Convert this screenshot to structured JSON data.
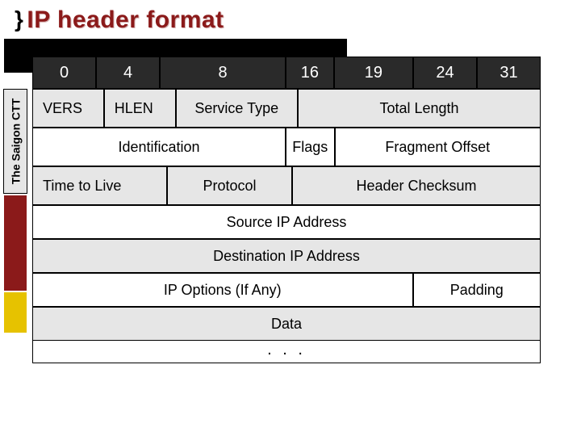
{
  "title": {
    "brace": "}",
    "text": "IP header format",
    "color": "#8b1a1a"
  },
  "sidebar": {
    "label": "The Saigon CTT",
    "bg": "#e6e6e6",
    "red_block": "#8b1a1a",
    "yellow_block": "#e6c200"
  },
  "diagram": {
    "type": "table",
    "bit_header": {
      "background": "#2a2a2a",
      "text_color": "#ffffff",
      "cells": [
        {
          "label": "0",
          "width": 4
        },
        {
          "label": "4",
          "width": 4
        },
        {
          "label": "8",
          "width": 8
        },
        {
          "label": "16",
          "width": 3
        },
        {
          "label": "19",
          "width": 5
        },
        {
          "label": "24",
          "width": 4
        },
        {
          "label": "31",
          "width": 4
        }
      ]
    },
    "rows": [
      {
        "bg": "alt",
        "cells": [
          {
            "label": "VERS",
            "bits": 4,
            "align": "left"
          },
          {
            "label": "HLEN",
            "bits": 4,
            "align": "left"
          },
          {
            "label": "Service Type",
            "bits": 8
          },
          {
            "label": "Total Length",
            "bits": 16
          }
        ]
      },
      {
        "bg": "wht",
        "cells": [
          {
            "label": "Identification",
            "bits": 16
          },
          {
            "label": "Flags",
            "bits": 3
          },
          {
            "label": "Fragment  Offset",
            "bits": 13
          }
        ]
      },
      {
        "bg": "alt",
        "cells": [
          {
            "label": "Time to Live",
            "bits": 8,
            "align": "left"
          },
          {
            "label": "Protocol",
            "bits": 8
          },
          {
            "label": "Header Checksum",
            "bits": 16
          }
        ]
      },
      {
        "bg": "wht",
        "cells": [
          {
            "label": "Source IP Address",
            "bits": 32
          }
        ]
      },
      {
        "bg": "alt",
        "cells": [
          {
            "label": "Destination IP Address",
            "bits": 32
          }
        ]
      },
      {
        "bg": "wht",
        "cells": [
          {
            "label": "IP Options (If Any)",
            "bits": 24
          },
          {
            "label": "Padding",
            "bits": 8
          }
        ]
      },
      {
        "bg": "alt",
        "cells": [
          {
            "label": "Data",
            "bits": 32
          }
        ]
      }
    ],
    "ellipsis": ". . .",
    "colors": {
      "alt_row": "#e6e6e6",
      "white_row": "#ffffff",
      "border": "#000000",
      "text": "#000000"
    },
    "font_size_pt": 14
  }
}
